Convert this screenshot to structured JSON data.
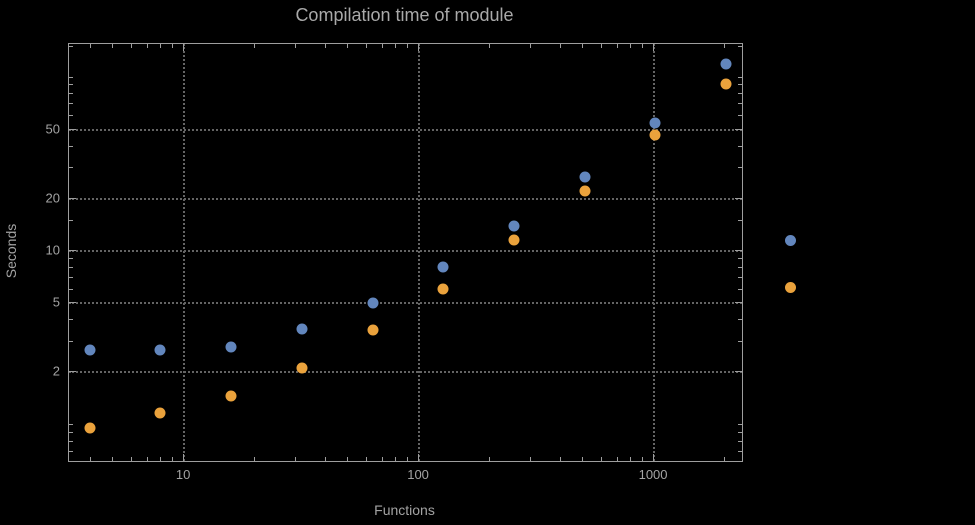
{
  "chart_data": {
    "type": "scatter",
    "title": "Compilation time of module",
    "xlabel": "Functions",
    "ylabel": "Seconds",
    "x_scale": "log",
    "y_scale": "log",
    "xlim": [
      3.27,
      2390
    ],
    "ylim": [
      0.61,
      154
    ],
    "grid": true,
    "grid_color": "#646464",
    "frame_color": "#9e9e9e",
    "text_color": "#a3a3a3",
    "background_color": "#000000",
    "x_gridlines": [
      10,
      100,
      1000
    ],
    "y_gridlines": [
      2,
      5,
      10,
      20,
      50
    ],
    "x_ticks": [
      10,
      100,
      1000
    ],
    "x_tick_labels": [
      "10",
      "100",
      "1000"
    ],
    "y_ticks": [
      2,
      5,
      10,
      20,
      50
    ],
    "y_tick_labels": [
      "2",
      "5",
      "10",
      "20",
      "50"
    ],
    "x_minor_ticks": [
      4,
      5,
      6,
      7,
      8,
      9,
      20,
      30,
      40,
      50,
      60,
      70,
      80,
      90,
      200,
      300,
      400,
      500,
      600,
      700,
      800,
      900,
      2000
    ],
    "y_minor_ticks": [
      0.7,
      0.8,
      0.9,
      1,
      3,
      4,
      6,
      7,
      8,
      9,
      15,
      30,
      40,
      60,
      70,
      80,
      90,
      100,
      150
    ],
    "series": [
      {
        "color": "#6286bd",
        "x": [
          4,
          8,
          16,
          32,
          64,
          128,
          256,
          512,
          1024,
          2048
        ],
        "y": [
          2.65,
          2.65,
          2.75,
          3.5,
          4.95,
          8.0,
          13.7,
          26.5,
          54,
          118
        ]
      },
      {
        "color": "#eaa23c",
        "x": [
          4,
          8,
          16,
          32,
          64,
          128,
          256,
          512,
          1024,
          2048
        ],
        "y": [
          0.95,
          1.15,
          1.45,
          2.1,
          3.45,
          6.0,
          11.4,
          22,
          46,
          90
        ]
      }
    ],
    "legend_position": "outside-right"
  },
  "legend": {
    "markers": [
      {
        "color": "#6286bd"
      },
      {
        "color": "#eaa23c"
      }
    ]
  }
}
